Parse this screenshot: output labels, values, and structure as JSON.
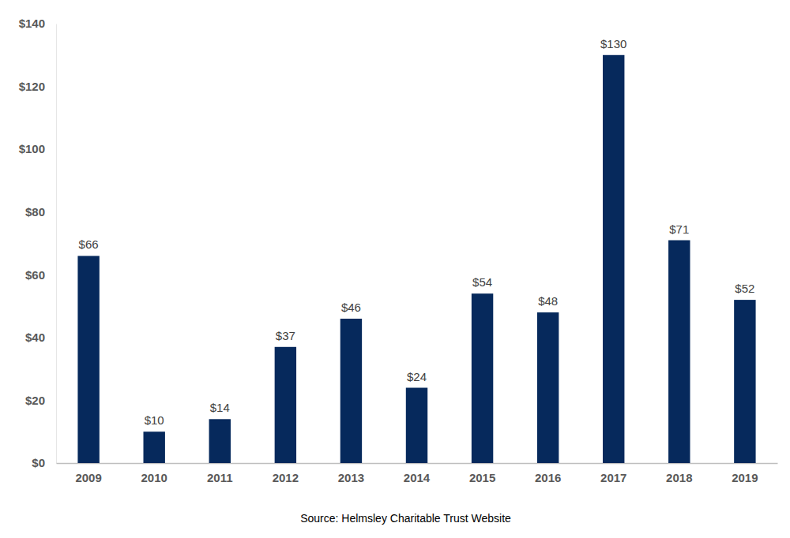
{
  "chart_data": {
    "type": "bar",
    "categories": [
      "2009",
      "2010",
      "2011",
      "2012",
      "2013",
      "2014",
      "2015",
      "2016",
      "2017",
      "2018",
      "2019"
    ],
    "values": [
      66,
      10,
      14,
      37,
      46,
      24,
      54,
      48,
      130,
      71,
      52
    ],
    "value_labels": [
      "$66",
      "$10",
      "$14",
      "$37",
      "$46",
      "$24",
      "$54",
      "$48",
      "$130",
      "$71",
      "$52"
    ],
    "data_labels": true,
    "color": "#06295c",
    "ylim": [
      0,
      140
    ],
    "yticks": [
      {
        "value": 0,
        "label": "$0"
      },
      {
        "value": 20,
        "label": "$20"
      },
      {
        "value": 40,
        "label": "$40"
      },
      {
        "value": 60,
        "label": "$60"
      },
      {
        "value": 80,
        "label": "$80"
      },
      {
        "value": 100,
        "label": "$100"
      },
      {
        "value": 120,
        "label": "$120"
      },
      {
        "value": 140,
        "label": "$140"
      }
    ],
    "grid": false,
    "source": "Source: Helmsley Charitable Trust Website"
  }
}
